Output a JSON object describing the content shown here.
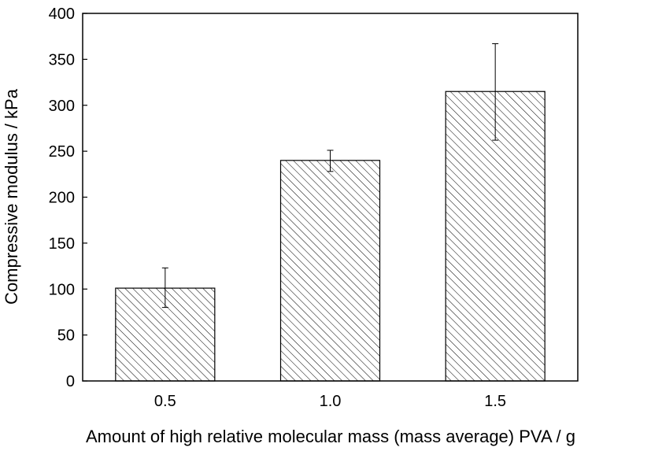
{
  "chart_data": {
    "type": "bar",
    "title": "",
    "xlabel": "Amount of high relative molecular mass (mass average) PVA / g",
    "ylabel": "Compressive modulus / kPa",
    "categories": [
      "0.5",
      "1.0",
      "1.5"
    ],
    "values": [
      101,
      240,
      315
    ],
    "error_upper": [
      123,
      251,
      367
    ],
    "error_lower": [
      80,
      228,
      262
    ],
    "ylim": [
      0,
      400
    ],
    "yticks": [
      0,
      50,
      100,
      150,
      200,
      250,
      300,
      350,
      400
    ],
    "ytick_labels": [
      "0",
      "50",
      "100",
      "150",
      "200",
      "250",
      "300",
      "350",
      "400"
    ],
    "bar_fill": "hatched",
    "bar_color": "#000000",
    "grid": false,
    "legend": "none"
  }
}
